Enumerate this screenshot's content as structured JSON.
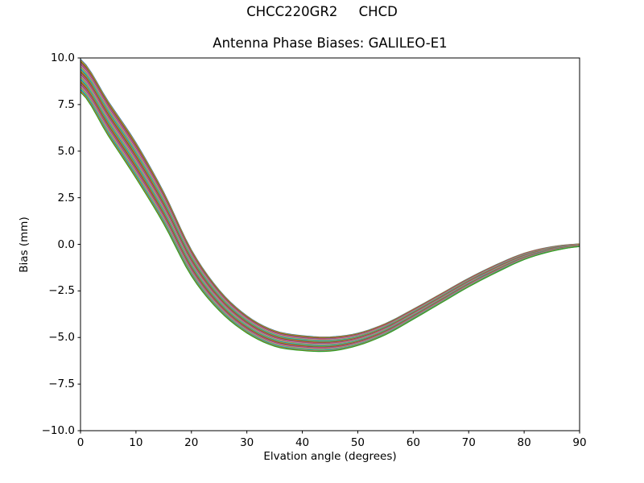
{
  "figure": {
    "suptitle": "CHCC220GR2     CHCD",
    "axes_title": "Antenna Phase Biases: GALILEO-E1"
  },
  "chart_data": {
    "type": "line",
    "suptitle": "CHCC220GR2     CHCD",
    "title": "Antenna Phase Biases: GALILEO-E1",
    "xlabel": "Elvation angle (degrees)",
    "ylabel": "Bias (mm)",
    "xlim": [
      0,
      90
    ],
    "ylim": [
      -10.0,
      10.0
    ],
    "xticks": [
      0,
      10,
      20,
      30,
      40,
      50,
      60,
      70,
      80,
      90
    ],
    "xtick_labels": [
      "0",
      "10",
      "20",
      "30",
      "40",
      "50",
      "60",
      "70",
      "80",
      "90"
    ],
    "yticks": [
      10.0,
      7.5,
      5.0,
      2.5,
      0.0,
      -2.5,
      -5.0,
      -7.5,
      -10.0
    ],
    "ytick_labels": [
      "10.0",
      "7.5",
      "5.0",
      "2.5",
      "0.0",
      "−2.5",
      "−5.0",
      "−7.5",
      "−10.0"
    ],
    "grid": false,
    "legend": null,
    "series_model": {
      "comment_shape": "Bundle of many per-satellite phase-bias curves; all share one common shape with small vertical offsets. Center curve and half-spread of the bundle read from the plot:",
      "elevation_deg": [
        0,
        5,
        10,
        15,
        20,
        25,
        30,
        35,
        40,
        45,
        50,
        55,
        60,
        65,
        70,
        75,
        80,
        85,
        90
      ],
      "bias_center_mm": [
        9.05,
        6.75,
        4.5,
        1.95,
        -1.0,
        -3.0,
        -4.3,
        -5.05,
        -5.3,
        -5.35,
        -5.1,
        -4.55,
        -3.75,
        -2.9,
        -2.05,
        -1.3,
        -0.65,
        -0.25,
        -0.05
      ],
      "bias_half_spread_mm": [
        0.88,
        0.92,
        0.95,
        0.85,
        0.7,
        0.55,
        0.46,
        0.42,
        0.4,
        0.38,
        0.33,
        0.3,
        0.27,
        0.25,
        0.23,
        0.21,
        0.17,
        0.12,
        0.07
      ],
      "n_lines": 33,
      "curve_min_mm": -5.35,
      "curve_min_elevation_deg": 45,
      "start_range_mm": [
        8.2,
        9.9
      ],
      "end_value_mm": -0.05
    },
    "palette": [
      "#1f77b4",
      "#ff7f0e",
      "#2ca02c",
      "#d62728",
      "#9467bd",
      "#8c564b",
      "#e377c2",
      "#7f7f7f",
      "#bcbd22",
      "#17becf"
    ],
    "axis_color": "#000000",
    "background_color": "#ffffff"
  }
}
